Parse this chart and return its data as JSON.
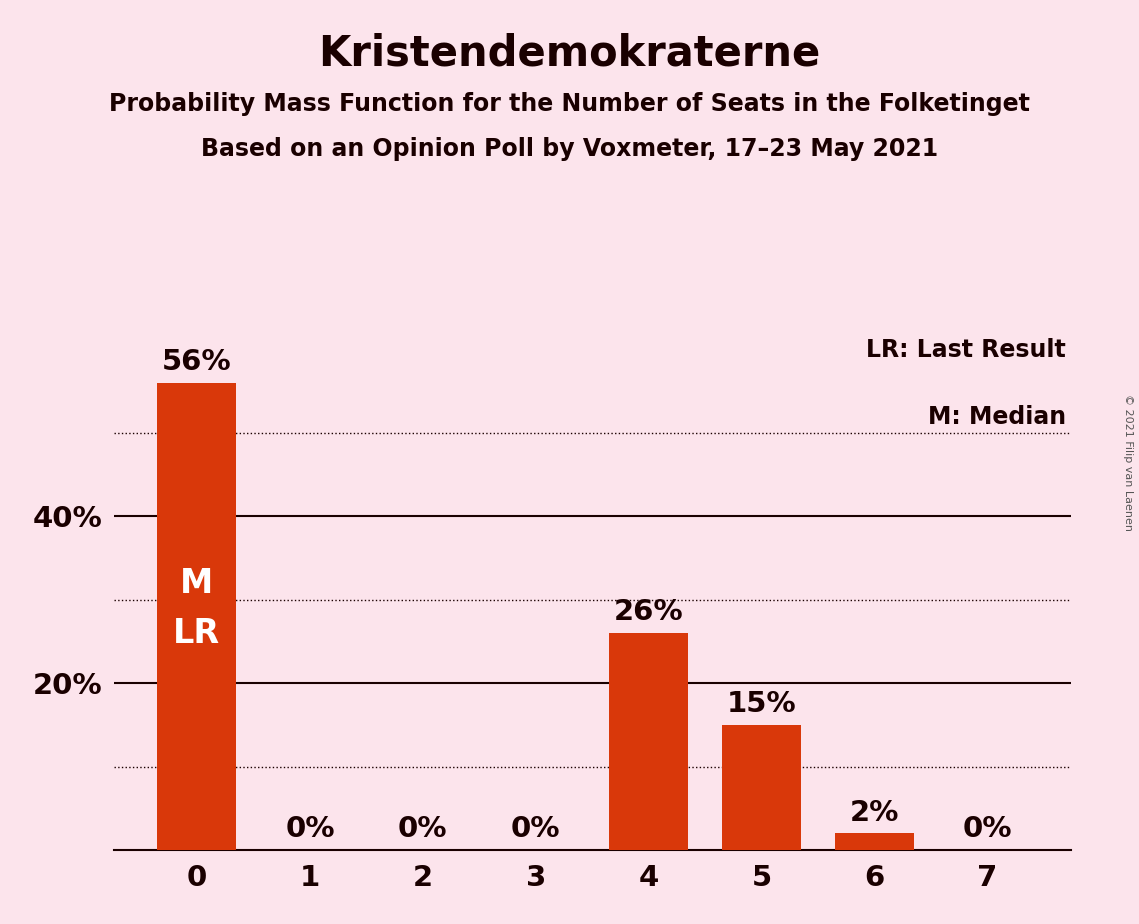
{
  "title": "Kristendemokraterne",
  "subtitle1": "Probability Mass Function for the Number of Seats in the Folketinget",
  "subtitle2": "Based on an Opinion Poll by Voxmeter, 17–23 May 2021",
  "copyright": "© 2021 Filip van Laenen",
  "categories": [
    0,
    1,
    2,
    3,
    4,
    5,
    6,
    7
  ],
  "values": [
    56,
    0,
    0,
    0,
    26,
    15,
    2,
    0
  ],
  "bar_color": "#d9380a",
  "background_color": "#fce4ec",
  "label_color_dark": "#1a0000",
  "label_color_light": "#ffffff",
  "dotted_lines": [
    10,
    30,
    50
  ],
  "solid_lines": [
    20,
    40
  ],
  "ylim": [
    0,
    62
  ],
  "legend_lr": "LR: Last Result",
  "legend_m": "M: Median",
  "title_fontsize": 30,
  "subtitle_fontsize": 17,
  "bar_label_fontsize": 21,
  "tick_fontsize": 21,
  "inside_label_fontsize": 22,
  "legend_fontsize": 17,
  "copyright_fontsize": 8
}
